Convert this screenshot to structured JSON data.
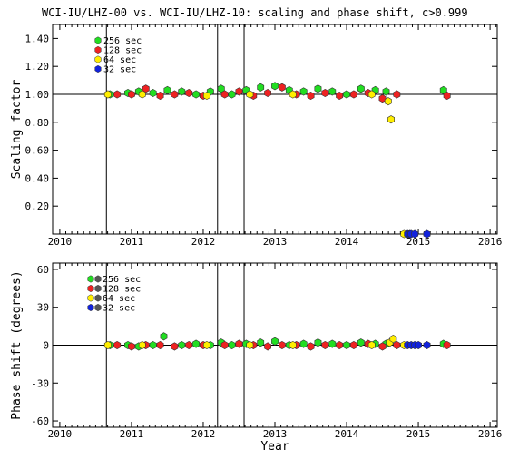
{
  "title": "WCI-IU/LHZ-00 vs. WCI-IU/LHZ-10: scaling and phase shift, c>0.999",
  "legend": [
    {
      "label": "256 sec",
      "color": "#22dd22"
    },
    {
      "label": "128 sec",
      "color": "#ee2222"
    },
    {
      "label": " 64 sec",
      "color": "#ffee00"
    },
    {
      "label": " 32 sec",
      "color": "#1122dd"
    }
  ],
  "chart_data": [
    {
      "type": "scatter",
      "ylabel": "Scaling factor",
      "xlabel": "",
      "xlim": [
        2009.9,
        2016.1
      ],
      "ylim": [
        0.0,
        1.5
      ],
      "x_ticks": [
        "2010",
        "2011",
        "2012",
        "2013",
        "2014",
        "2015",
        "2016"
      ],
      "y_ticks": [
        "0.20",
        "0.40",
        "0.60",
        "0.80",
        "1.00",
        "1.20",
        "1.40"
      ],
      "reference_line_y": 1.0,
      "vertical_lines_x": [
        2010.65,
        2012.2,
        2012.57
      ],
      "series": [
        {
          "name": "256 sec",
          "x": [
            2010.7,
            2010.95,
            2011.1,
            2011.3,
            2011.5,
            2011.7,
            2011.9,
            2012.1,
            2012.25,
            2012.4,
            2012.6,
            2012.8,
            2013.0,
            2013.2,
            2013.4,
            2013.6,
            2013.8,
            2014.0,
            2014.2,
            2014.4,
            2014.55,
            2015.35
          ],
          "y": [
            1.0,
            1.01,
            1.02,
            1.01,
            1.03,
            1.02,
            1.0,
            1.02,
            1.04,
            1.0,
            1.03,
            1.05,
            1.06,
            1.03,
            1.02,
            1.04,
            1.02,
            1.0,
            1.04,
            1.03,
            1.02,
            1.03
          ]
        },
        {
          "name": "128 sec",
          "x": [
            2010.8,
            2011.0,
            2011.2,
            2011.4,
            2011.6,
            2011.8,
            2012.0,
            2012.3,
            2012.5,
            2012.7,
            2012.9,
            2013.1,
            2013.3,
            2013.5,
            2013.7,
            2013.9,
            2014.1,
            2014.3,
            2014.5,
            2014.7,
            2015.4
          ],
          "y": [
            1.0,
            1.0,
            1.04,
            0.99,
            1.0,
            1.01,
            0.99,
            1.0,
            1.02,
            0.99,
            1.01,
            1.05,
            1.0,
            0.99,
            1.01,
            0.99,
            1.0,
            1.01,
            0.97,
            1.0,
            0.99
          ]
        },
        {
          "name": "64 sec",
          "x": [
            2010.67,
            2011.15,
            2012.05,
            2012.65,
            2013.25,
            2014.35,
            2014.58,
            2014.62,
            2014.8
          ],
          "y": [
            1.0,
            1.0,
            0.99,
            1.0,
            1.0,
            1.0,
            0.95,
            0.82,
            0.0
          ]
        },
        {
          "name": "32 sec",
          "x": [
            2014.85,
            2014.88,
            2014.9,
            2014.95,
            2015.12
          ],
          "y": [
            0.0,
            0.0,
            0.0,
            0.0,
            0.0
          ]
        }
      ]
    },
    {
      "type": "scatter",
      "ylabel": "Phase shift (degrees)",
      "xlabel": "Year",
      "xlim": [
        2009.9,
        2016.1
      ],
      "ylim": [
        -65,
        65
      ],
      "x_ticks": [
        "2010",
        "2011",
        "2012",
        "2013",
        "2014",
        "2015",
        "2016"
      ],
      "y_ticks": [
        "-60",
        "-30",
        "0",
        "30",
        "60"
      ],
      "reference_line_y": 0,
      "vertical_lines_x": [
        2010.65,
        2012.2,
        2012.57
      ],
      "series": [
        {
          "name": "256 sec",
          "x": [
            2010.7,
            2010.95,
            2011.1,
            2011.3,
            2011.45,
            2011.7,
            2011.9,
            2012.1,
            2012.25,
            2012.4,
            2012.6,
            2012.8,
            2013.0,
            2013.2,
            2013.4,
            2013.6,
            2013.8,
            2014.0,
            2014.2,
            2014.4,
            2014.55,
            2015.35
          ],
          "y": [
            0,
            0,
            -1,
            0,
            7,
            0,
            1,
            0,
            2,
            0,
            1,
            2,
            3,
            0,
            1,
            2,
            1,
            0,
            2,
            1,
            1,
            1
          ]
        },
        {
          "name": "128 sec",
          "x": [
            2010.8,
            2011.0,
            2011.2,
            2011.4,
            2011.6,
            2011.8,
            2012.0,
            2012.3,
            2012.5,
            2012.7,
            2012.9,
            2013.1,
            2013.3,
            2013.5,
            2013.7,
            2013.9,
            2014.1,
            2014.3,
            2014.5,
            2014.7,
            2015.4
          ],
          "y": [
            0,
            -1,
            0,
            0,
            -1,
            0,
            0,
            0,
            1,
            0,
            -1,
            0,
            0,
            -1,
            0,
            0,
            0,
            1,
            -1,
            0,
            0
          ]
        },
        {
          "name": "64 sec",
          "x": [
            2010.67,
            2011.15,
            2012.05,
            2012.65,
            2013.25,
            2014.35,
            2014.6,
            2014.65,
            2014.8
          ],
          "y": [
            0,
            0,
            0,
            0,
            0,
            0,
            2,
            5,
            0
          ]
        },
        {
          "name": "32 sec",
          "x": [
            2014.85,
            2014.9,
            2014.95,
            2015.0,
            2015.12
          ],
          "y": [
            0,
            0,
            0,
            0,
            0
          ]
        }
      ]
    }
  ]
}
